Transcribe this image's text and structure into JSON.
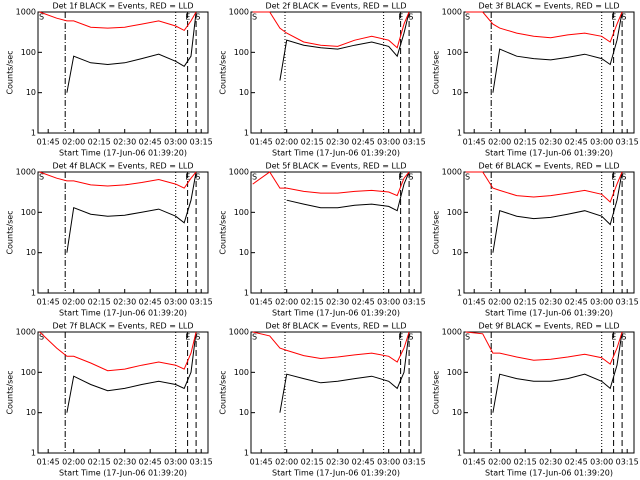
{
  "chart_data": [
    {
      "type": "line",
      "title": "Det 1f BLACK = Events, RED = LLD",
      "xlabel": "Start Time (17-Jun-06 01:39:20)",
      "ylabel": "Counts/sec",
      "log_scale": true,
      "x": [
        "01:40",
        "01:50",
        "01:56",
        "02:00",
        "02:10",
        "02:20",
        "02:30",
        "02:40",
        "02:50",
        "03:00",
        "03:05",
        "03:09",
        "03:12"
      ],
      "series": [
        {
          "color": "#000000",
          "values": [
            null,
            null,
            10,
            80,
            55,
            50,
            55,
            70,
            90,
            60,
            45,
            80,
            1000
          ]
        },
        {
          "color": "#ff0000",
          "values": [
            1000,
            700,
            600,
            600,
            420,
            400,
            420,
            500,
            600,
            450,
            350,
            600,
            1000
          ]
        }
      ],
      "xlim": [
        "01:39",
        "03:19"
      ],
      "xticks": [
        "01:45",
        "02:00",
        "02:15",
        "02:30",
        "02:45",
        "03:00",
        "03:15"
      ],
      "ylim": [
        1,
        1000
      ],
      "yticks": [
        1,
        10,
        100,
        1000
      ],
      "annotations": [
        {
          "text": "S",
          "x": "01:39"
        },
        {
          "text": "E",
          "x": "03:05"
        },
        {
          "text": "S",
          "x": "03:11"
        }
      ],
      "vlines": [
        {
          "x": "01:55",
          "style": "dashdot"
        },
        {
          "x": "03:00",
          "style": "dotted"
        },
        {
          "x": "03:07",
          "style": "dashed"
        },
        {
          "x": "03:12",
          "style": "dashed"
        }
      ]
    },
    {
      "type": "line",
      "title": "Det 2f BLACK = Events, RED = LLD",
      "xlabel": "Start Time (17-Jun-06 01:39:20)",
      "ylabel": "Counts/sec",
      "log_scale": true,
      "x": [
        "01:40",
        "01:50",
        "01:56",
        "02:00",
        "02:10",
        "02:20",
        "02:30",
        "02:40",
        "02:50",
        "03:00",
        "03:05",
        "03:09",
        "03:12"
      ],
      "series": [
        {
          "color": "#000000",
          "values": [
            null,
            null,
            20,
            200,
            150,
            130,
            120,
            150,
            180,
            140,
            80,
            300,
            1000
          ]
        },
        {
          "color": "#ff0000",
          "values": [
            1000,
            1000,
            400,
            300,
            180,
            150,
            140,
            200,
            250,
            200,
            130,
            500,
            1000
          ]
        }
      ],
      "xlim": [
        "01:39",
        "03:19"
      ],
      "xticks": [
        "01:45",
        "02:00",
        "02:15",
        "02:30",
        "02:45",
        "03:00",
        "03:15"
      ],
      "ylim": [
        1,
        1000
      ],
      "yticks": [
        1,
        10,
        100,
        1000
      ],
      "annotations": [
        {
          "text": "S",
          "x": "01:39"
        },
        {
          "text": "E",
          "x": "03:05"
        },
        {
          "text": "S",
          "x": "03:11"
        }
      ],
      "vlines": [
        {
          "x": "01:59",
          "style": "dotted"
        },
        {
          "x": "02:57",
          "style": "dotted"
        },
        {
          "x": "03:07",
          "style": "dashed"
        },
        {
          "x": "03:12",
          "style": "dashed"
        }
      ]
    },
    {
      "type": "line",
      "title": "Det 3f BLACK = Events, RED = LLD",
      "xlabel": "Start Time (17-Jun-06 01:39:20)",
      "ylabel": "Counts/sec",
      "log_scale": true,
      "x": [
        "01:40",
        "01:50",
        "01:56",
        "02:00",
        "02:10",
        "02:20",
        "02:30",
        "02:40",
        "02:50",
        "03:00",
        "03:05",
        "03:09",
        "03:12"
      ],
      "series": [
        {
          "color": "#000000",
          "values": [
            null,
            null,
            10,
            120,
            80,
            70,
            65,
            75,
            90,
            70,
            50,
            200,
            1000
          ]
        },
        {
          "color": "#ff0000",
          "values": [
            1000,
            1000,
            500,
            400,
            300,
            250,
            230,
            270,
            300,
            250,
            180,
            500,
            1000
          ]
        }
      ],
      "xlim": [
        "01:39",
        "03:19"
      ],
      "xticks": [
        "01:45",
        "02:00",
        "02:15",
        "02:30",
        "02:45",
        "03:00",
        "03:15"
      ],
      "ylim": [
        1,
        1000
      ],
      "yticks": [
        1,
        10,
        100,
        1000
      ],
      "annotations": [
        {
          "text": "S",
          "x": "01:39"
        },
        {
          "text": "E",
          "x": "03:05"
        },
        {
          "text": "S",
          "x": "03:11"
        }
      ],
      "vlines": [
        {
          "x": "01:55",
          "style": "dashdot"
        },
        {
          "x": "03:00",
          "style": "dotted"
        },
        {
          "x": "03:07",
          "style": "dashed"
        },
        {
          "x": "03:12",
          "style": "dashed"
        }
      ]
    },
    {
      "type": "line",
      "title": "Det 4f BLACK = Events, RED = LLD",
      "xlabel": "Start Time (17-Jun-06 01:39:20)",
      "ylabel": "Counts/sec",
      "log_scale": true,
      "x": [
        "01:40",
        "01:50",
        "01:56",
        "02:00",
        "02:10",
        "02:20",
        "02:30",
        "02:40",
        "02:50",
        "03:00",
        "03:05",
        "03:09",
        "03:12"
      ],
      "series": [
        {
          "color": "#000000",
          "values": [
            null,
            null,
            10,
            130,
            90,
            80,
            85,
            100,
            120,
            80,
            55,
            200,
            1000
          ]
        },
        {
          "color": "#ff0000",
          "values": [
            1000,
            700,
            600,
            600,
            480,
            450,
            480,
            550,
            650,
            500,
            400,
            700,
            1000
          ]
        }
      ],
      "xlim": [
        "01:39",
        "03:19"
      ],
      "xticks": [
        "01:45",
        "02:00",
        "02:15",
        "02:30",
        "02:45",
        "03:00",
        "03:15"
      ],
      "ylim": [
        1,
        1000
      ],
      "yticks": [
        1,
        10,
        100,
        1000
      ],
      "annotations": [
        {
          "text": "S",
          "x": "01:39"
        },
        {
          "text": "E",
          "x": "03:05"
        },
        {
          "text": "S",
          "x": "03:11"
        }
      ],
      "vlines": [
        {
          "x": "01:55",
          "style": "dashdot"
        },
        {
          "x": "03:00",
          "style": "dotted"
        },
        {
          "x": "03:07",
          "style": "dashed"
        },
        {
          "x": "03:12",
          "style": "dashed"
        }
      ]
    },
    {
      "type": "line",
      "title": "Det 5f BLACK = Events, RED = LLD",
      "xlabel": "Start Time (17-Jun-06 01:39:20)",
      "ylabel": "Counts/sec",
      "log_scale": true,
      "x": [
        "01:40",
        "01:50",
        "01:56",
        "02:00",
        "02:10",
        "02:20",
        "02:30",
        "02:40",
        "02:50",
        "03:00",
        "03:05",
        "03:09",
        "03:12"
      ],
      "series": [
        {
          "color": "#000000",
          "values": [
            null,
            null,
            null,
            200,
            160,
            130,
            130,
            150,
            160,
            140,
            110,
            500,
            1000
          ]
        },
        {
          "color": "#ff0000",
          "values": [
            500,
            1000,
            400,
            400,
            330,
            300,
            300,
            330,
            350,
            320,
            260,
            700,
            1000
          ]
        }
      ],
      "xlim": [
        "01:39",
        "03:19"
      ],
      "xticks": [
        "01:45",
        "02:00",
        "02:15",
        "02:30",
        "02:45",
        "03:00",
        "03:15"
      ],
      "ylim": [
        1,
        1000
      ],
      "yticks": [
        1,
        10,
        100,
        1000
      ],
      "annotations": [
        {
          "text": "S",
          "x": "01:39"
        },
        {
          "text": "E",
          "x": "03:05"
        },
        {
          "text": "S",
          "x": "03:11"
        }
      ],
      "vlines": [
        {
          "x": "01:59",
          "style": "dotted"
        },
        {
          "x": "02:57",
          "style": "dotted"
        },
        {
          "x": "03:07",
          "style": "dashed"
        },
        {
          "x": "03:12",
          "style": "dashed"
        }
      ]
    },
    {
      "type": "line",
      "title": "Det 6f BLACK = Events, RED = LLD",
      "xlabel": "Start Time (17-Jun-06 01:39:20)",
      "ylabel": "Counts/sec",
      "log_scale": true,
      "x": [
        "01:40",
        "01:50",
        "01:56",
        "02:00",
        "02:10",
        "02:20",
        "02:30",
        "02:40",
        "02:50",
        "03:00",
        "03:05",
        "03:09",
        "03:12"
      ],
      "series": [
        {
          "color": "#000000",
          "values": [
            null,
            null,
            10,
            110,
            80,
            70,
            75,
            90,
            110,
            80,
            50,
            200,
            1000
          ]
        },
        {
          "color": "#ff0000",
          "values": [
            1000,
            1000,
            400,
            350,
            260,
            240,
            260,
            300,
            350,
            280,
            180,
            500,
            1000
          ]
        }
      ],
      "xlim": [
        "01:39",
        "03:19"
      ],
      "xticks": [
        "01:45",
        "02:00",
        "02:15",
        "02:30",
        "02:45",
        "03:00",
        "03:15"
      ],
      "ylim": [
        1,
        1000
      ],
      "yticks": [
        1,
        10,
        100,
        1000
      ],
      "annotations": [
        {
          "text": "S",
          "x": "01:39"
        },
        {
          "text": "E",
          "x": "03:05"
        },
        {
          "text": "S",
          "x": "03:11"
        }
      ],
      "vlines": [
        {
          "x": "01:55",
          "style": "dashdot"
        },
        {
          "x": "03:00",
          "style": "dotted"
        },
        {
          "x": "03:07",
          "style": "dashed"
        },
        {
          "x": "03:12",
          "style": "dashed"
        }
      ]
    },
    {
      "type": "line",
      "title": "Det 7f BLACK = Events, RED = LLD",
      "xlabel": "Start Time (17-Jun-06 01:39:20)",
      "ylabel": "Counts/sec",
      "log_scale": true,
      "x": [
        "01:40",
        "01:50",
        "01:56",
        "02:00",
        "02:10",
        "02:20",
        "02:30",
        "02:40",
        "02:50",
        "03:00",
        "03:05",
        "03:09",
        "03:12"
      ],
      "series": [
        {
          "color": "#000000",
          "values": [
            null,
            null,
            10,
            80,
            50,
            35,
            40,
            50,
            60,
            50,
            40,
            100,
            1000
          ]
        },
        {
          "color": "#ff0000",
          "values": [
            1000,
            400,
            250,
            250,
            170,
            110,
            120,
            150,
            180,
            150,
            120,
            300,
            1000
          ]
        }
      ],
      "xlim": [
        "01:39",
        "03:19"
      ],
      "xticks": [
        "01:45",
        "02:00",
        "02:15",
        "02:30",
        "02:45",
        "03:00",
        "03:15"
      ],
      "ylim": [
        1,
        1000
      ],
      "yticks": [
        1,
        10,
        100,
        1000
      ],
      "annotations": [
        {
          "text": "S",
          "x": "01:39"
        },
        {
          "text": "E",
          "x": "03:05"
        },
        {
          "text": "S",
          "x": "03:11"
        }
      ],
      "vlines": [
        {
          "x": "01:55",
          "style": "dashdot"
        },
        {
          "x": "03:00",
          "style": "dotted"
        },
        {
          "x": "03:07",
          "style": "dashed"
        },
        {
          "x": "03:12",
          "style": "dashed"
        }
      ]
    },
    {
      "type": "line",
      "title": "Det 8f BLACK = Events, RED = LLD",
      "xlabel": "Start Time (17-Jun-06 01:39:20)",
      "ylabel": "Counts/sec",
      "log_scale": true,
      "x": [
        "01:40",
        "01:50",
        "01:56",
        "02:00",
        "02:10",
        "02:20",
        "02:30",
        "02:40",
        "02:50",
        "03:00",
        "03:05",
        "03:09",
        "03:12"
      ],
      "series": [
        {
          "color": "#000000",
          "values": [
            null,
            null,
            10,
            90,
            70,
            55,
            60,
            70,
            80,
            60,
            40,
            100,
            1000
          ]
        },
        {
          "color": "#ff0000",
          "values": [
            1000,
            800,
            400,
            350,
            260,
            220,
            240,
            270,
            300,
            250,
            180,
            400,
            1000
          ]
        }
      ],
      "xlim": [
        "01:39",
        "03:19"
      ],
      "xticks": [
        "01:45",
        "02:00",
        "02:15",
        "02:30",
        "02:45",
        "03:00",
        "03:15"
      ],
      "ylim": [
        1,
        1000
      ],
      "yticks": [
        1,
        10,
        100,
        1000
      ],
      "annotations": [
        {
          "text": "S",
          "x": "01:39"
        },
        {
          "text": "E",
          "x": "03:05"
        },
        {
          "text": "S",
          "x": "03:11"
        }
      ],
      "vlines": [
        {
          "x": "01:59",
          "style": "dotted"
        },
        {
          "x": "02:57",
          "style": "dotted"
        },
        {
          "x": "03:07",
          "style": "dashed"
        },
        {
          "x": "03:12",
          "style": "dashed"
        }
      ]
    },
    {
      "type": "line",
      "title": "Det 9f BLACK = Events, RED = LLD",
      "xlabel": "Start Time (17-Jun-06 01:39:20)",
      "ylabel": "Counts/sec",
      "log_scale": true,
      "x": [
        "01:40",
        "01:50",
        "01:56",
        "02:00",
        "02:10",
        "02:20",
        "02:30",
        "02:40",
        "02:50",
        "03:00",
        "03:05",
        "03:09",
        "03:12"
      ],
      "series": [
        {
          "color": "#000000",
          "values": [
            null,
            null,
            10,
            90,
            70,
            60,
            60,
            70,
            90,
            60,
            40,
            150,
            1000
          ]
        },
        {
          "color": "#ff0000",
          "values": [
            1000,
            900,
            300,
            300,
            240,
            200,
            210,
            240,
            280,
            230,
            160,
            400,
            1000
          ]
        }
      ],
      "xlim": [
        "01:39",
        "03:19"
      ],
      "xticks": [
        "01:45",
        "02:00",
        "02:15",
        "02:30",
        "02:45",
        "03:00",
        "03:15"
      ],
      "ylim": [
        1,
        1000
      ],
      "yticks": [
        1,
        10,
        100,
        1000
      ],
      "annotations": [
        {
          "text": "S",
          "x": "01:39"
        },
        {
          "text": "E",
          "x": "03:05"
        },
        {
          "text": "S",
          "x": "03:11"
        }
      ],
      "vlines": [
        {
          "x": "01:55",
          "style": "dashdot"
        },
        {
          "x": "03:00",
          "style": "dotted"
        },
        {
          "x": "03:07",
          "style": "dashed"
        },
        {
          "x": "03:12",
          "style": "dashed"
        }
      ]
    }
  ]
}
